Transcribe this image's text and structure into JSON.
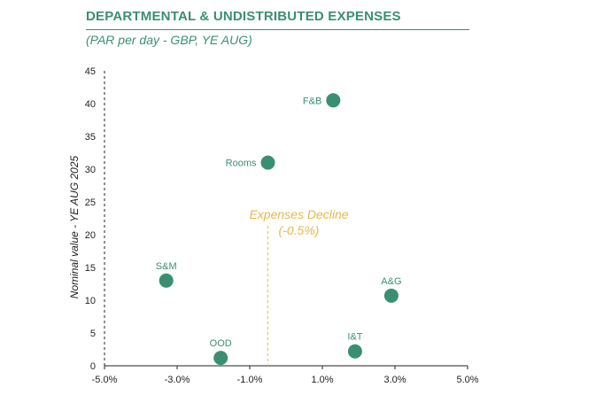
{
  "header": {
    "title": "DEPARTMENTAL & UNDISTRIBUTED EXPENSES",
    "subtitle": "(PAR per day - GBP, YE AUG)"
  },
  "colors": {
    "accent": "#3a8f73",
    "annotation": "#e8b84a",
    "axis": "#222222"
  },
  "chart_data": {
    "type": "scatter",
    "title": "DEPARTMENTAL & UNDISTRIBUTED EXPENSES",
    "subtitle": "(PAR per day - GBP, YE AUG)",
    "xlabel": "",
    "ylabel": "Nominal value - YE AUG 2025",
    "xlim": [
      -5.0,
      5.0
    ],
    "ylim": [
      0,
      45
    ],
    "x_ticks": [
      -5.0,
      -3.0,
      -1.0,
      1.0,
      3.0,
      5.0
    ],
    "x_tick_labels": [
      "-5.0%",
      "-3.0%",
      "-1.0%",
      "1.0%",
      "3.0%",
      "5.0%"
    ],
    "y_ticks": [
      0,
      5,
      10,
      15,
      20,
      25,
      30,
      35,
      40,
      45
    ],
    "y_tick_labels": [
      "0",
      "5",
      "10",
      "15",
      "20",
      "25",
      "30",
      "35",
      "40",
      "45"
    ],
    "grid": false,
    "points": [
      {
        "label": "F&B",
        "x": 1.3,
        "y": 40.5,
        "label_pos": "left"
      },
      {
        "label": "Rooms",
        "x": -0.5,
        "y": 31.0,
        "label_pos": "left"
      },
      {
        "label": "S&M",
        "x": -3.3,
        "y": 13.0,
        "label_pos": "above"
      },
      {
        "label": "A&G",
        "x": 2.9,
        "y": 10.7,
        "label_pos": "above"
      },
      {
        "label": "I&T",
        "x": 1.9,
        "y": 2.2,
        "label_pos": "above"
      },
      {
        "label": "OOD",
        "x": -1.8,
        "y": 1.2,
        "label_pos": "above"
      }
    ],
    "reference_line": {
      "x": -0.5,
      "label_line1": "Expenses Decline",
      "label_line2": "(-0.5%)"
    }
  }
}
